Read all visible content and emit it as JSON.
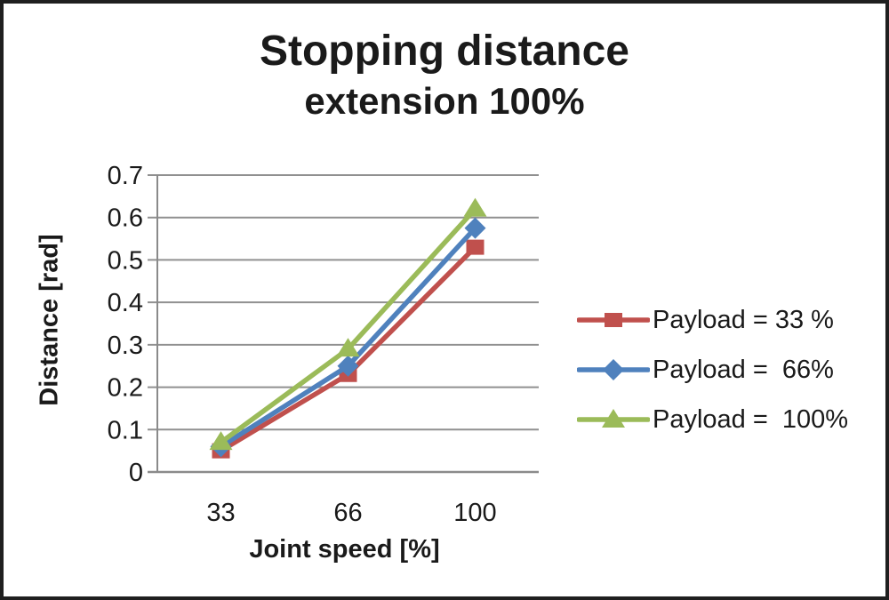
{
  "figure": {
    "title_line1": "Stopping distance",
    "title_line2": "extension 100%"
  },
  "chart_data": {
    "type": "line",
    "title": "Stopping distance extension 100%",
    "categories": [
      "33",
      "66",
      "100"
    ],
    "xlabel": "Joint speed [%]",
    "ylabel": "Distance [rad]",
    "ylim": [
      0,
      0.7
    ],
    "ytick_values": [
      0,
      0.1,
      0.2,
      0.3,
      0.4,
      0.5,
      0.6,
      0.7
    ],
    "ytick_labels": [
      "0",
      "0.1",
      "0.2",
      "0.3",
      "0.4",
      "0.5",
      "0.6",
      "0.7"
    ],
    "grid": true,
    "legend_position": "right",
    "series": [
      {
        "name": "Payload = 33 %",
        "color": "#C0504D",
        "marker": "square",
        "values": [
          0.05,
          0.23,
          0.53
        ]
      },
      {
        "name": "Payload =  66%",
        "color": "#4F81BD",
        "marker": "diamond",
        "values": [
          0.06,
          0.25,
          0.575
        ]
      },
      {
        "name": "Payload =  100%",
        "color": "#9BBB59",
        "marker": "triangle",
        "values": [
          0.07,
          0.29,
          0.62
        ]
      }
    ]
  },
  "colors": {
    "grid": "#909090",
    "axis": "#8a8a8a",
    "text": "#1a1a1a",
    "background": "#ffffff",
    "border": "#1f1f1f"
  }
}
